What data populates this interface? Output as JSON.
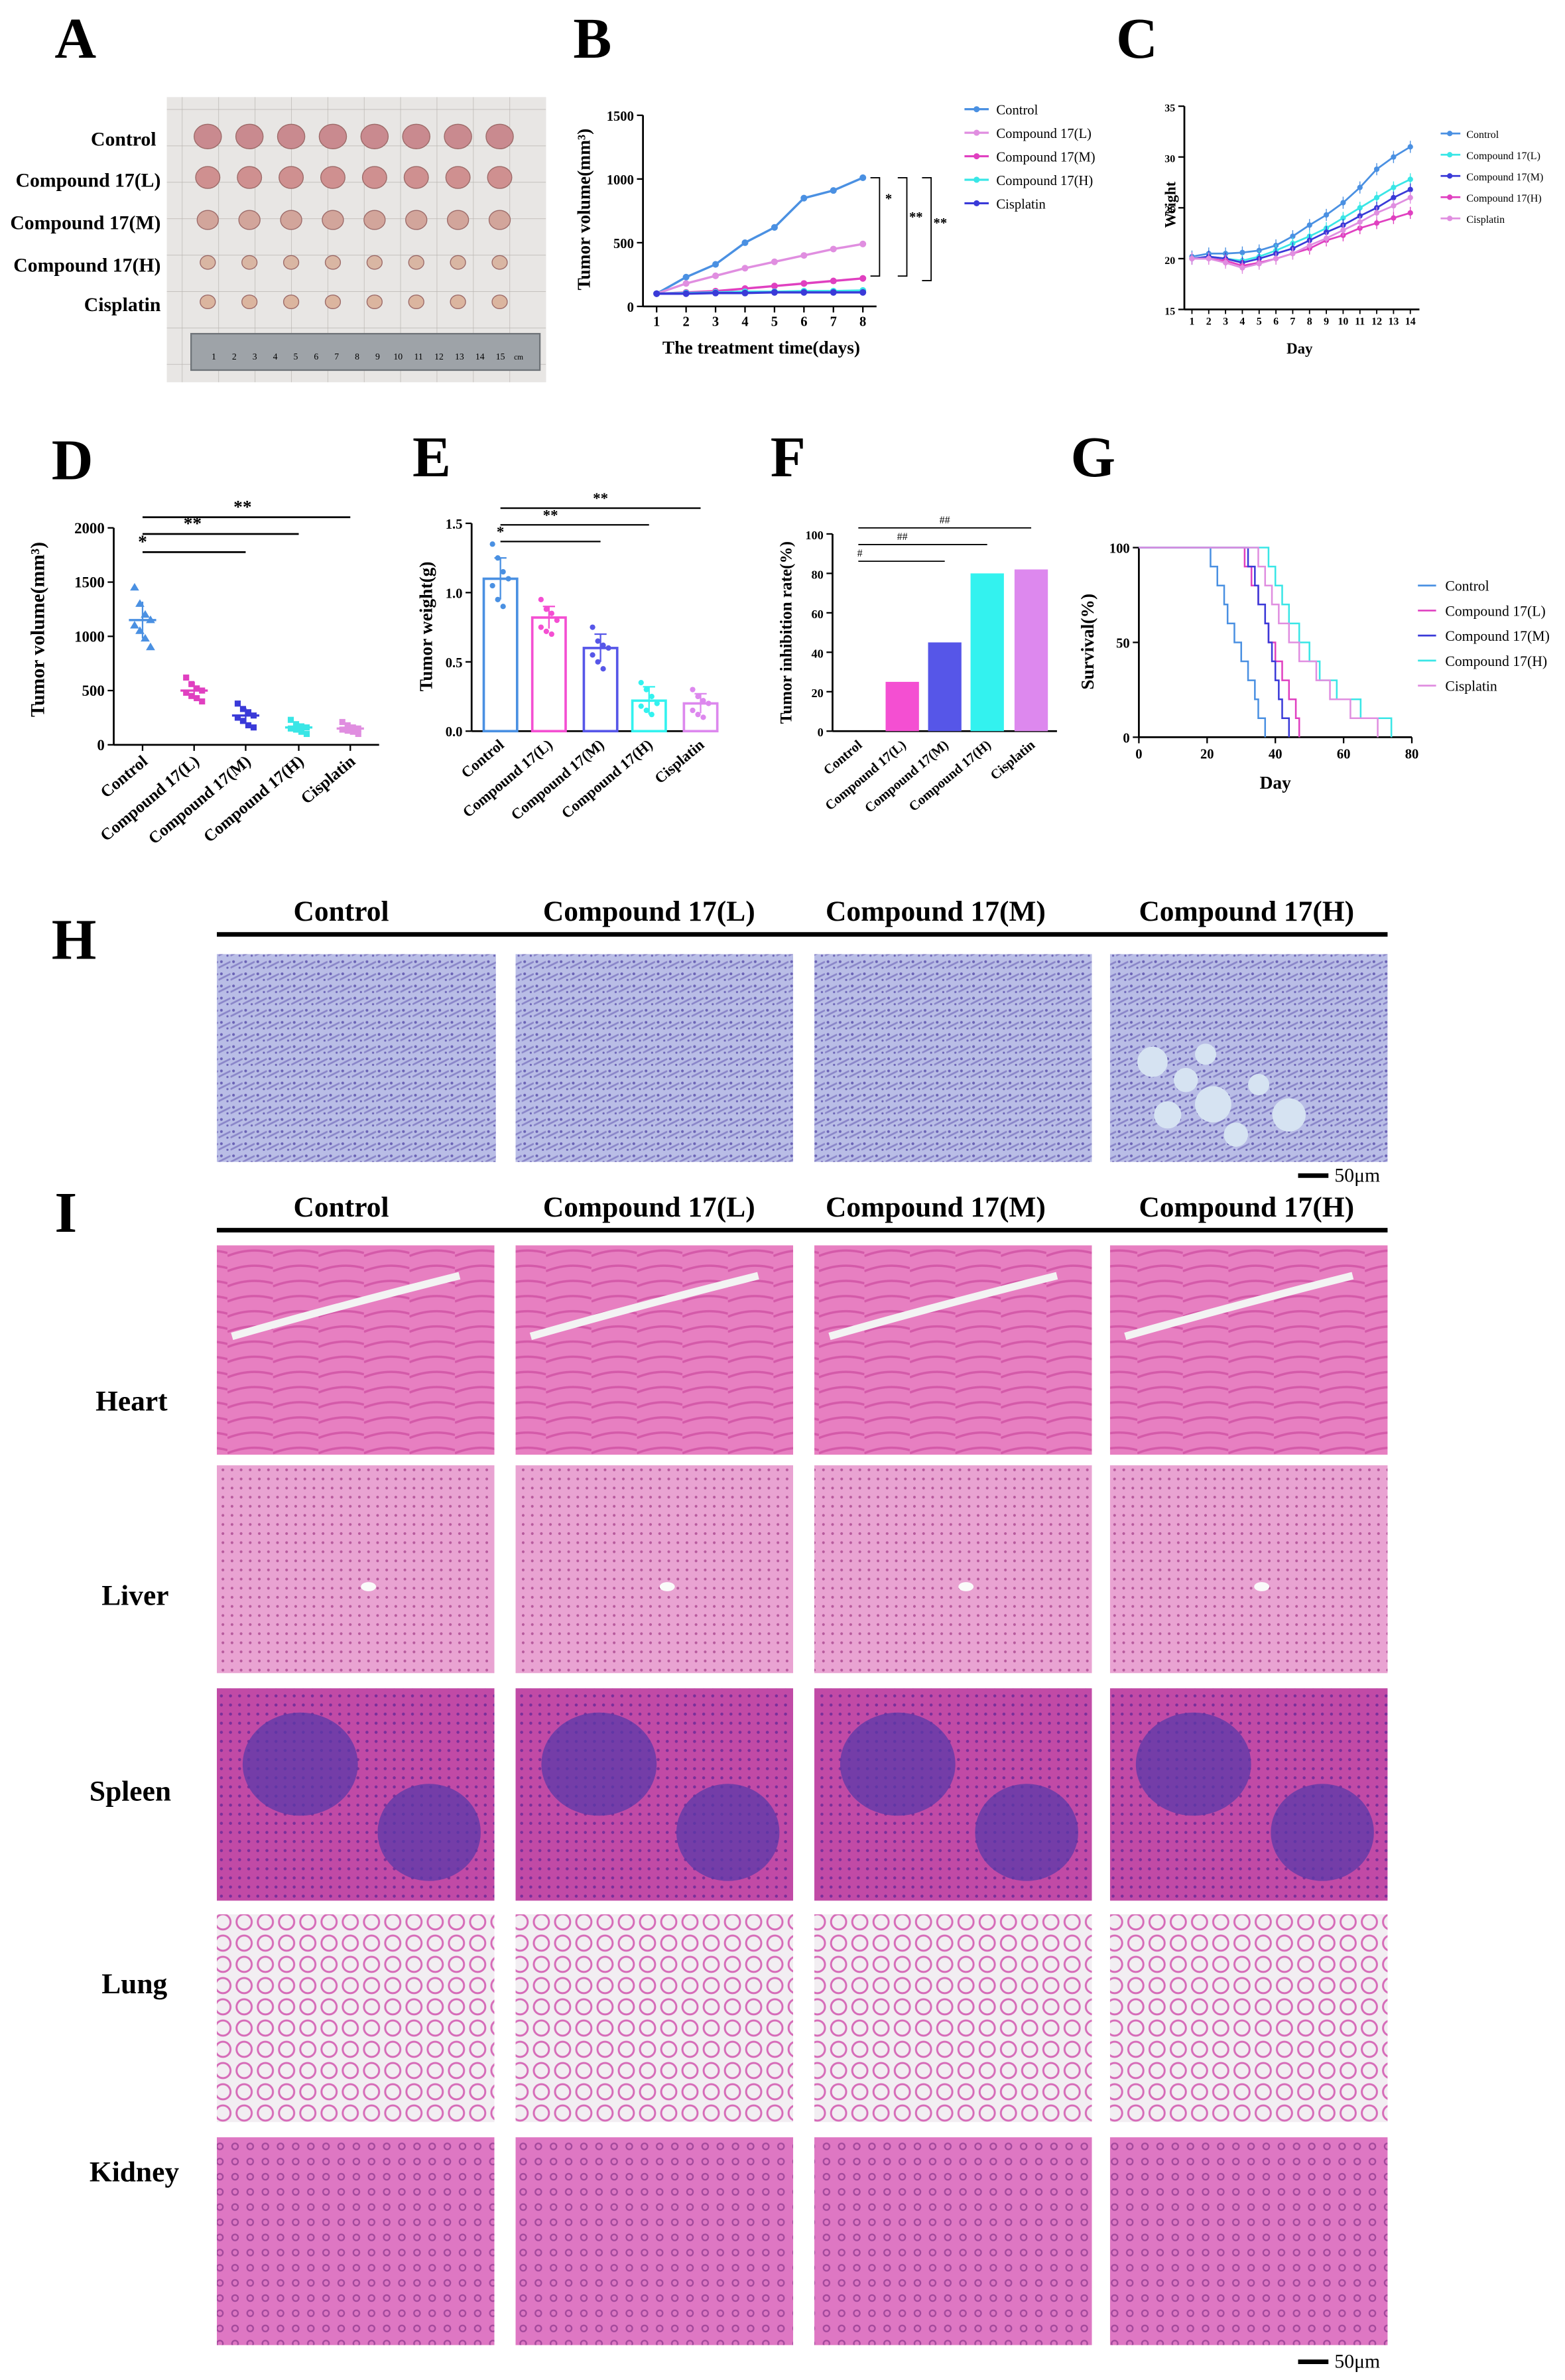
{
  "panel_letters": [
    "A",
    "B",
    "C",
    "D",
    "E",
    "F",
    "G",
    "H",
    "I"
  ],
  "groups": [
    "Control",
    "Compound 17(L)",
    "Compound 17(M)",
    "Compound 17(H)",
    "Cisplatin"
  ],
  "colors": {
    "Control": "#4a90e2",
    "Compound 17(L)": "#e08ee0",
    "Compound 17(M)": "#e040c0",
    "Compound 17(H)": "#39e6e6",
    "Cisplatin": "#3a3ad8",
    "bar_L": "#f44fd2",
    "bar_M": "#5656e8",
    "bar_H": "#33f2ef",
    "bar_Cis": "#dd88ee"
  },
  "panelA": {
    "row_labels": [
      "Control",
      "Compound 17(L)",
      "Compound 17(M)",
      "Compound 17(H)",
      "Cisplatin"
    ],
    "ruler_numbers": [
      "1",
      "2",
      "3",
      "4",
      "5",
      "6",
      "7",
      "8",
      "9",
      "10",
      "11",
      "12",
      "13",
      "14",
      "15"
    ],
    "ruler_unit": "cm"
  },
  "chart_data": [
    {
      "id": "B",
      "type": "line",
      "xlabel": "The treatment time(days)",
      "ylabel": "Tumor volume(mm³)",
      "x": [
        1,
        2,
        3,
        4,
        5,
        6,
        7,
        8
      ],
      "xlim": [
        1,
        8
      ],
      "ylim": [
        0,
        1500
      ],
      "yticks": [
        0,
        500,
        1000,
        1500
      ],
      "legend": "right",
      "series": [
        {
          "name": "Control",
          "values": [
            100,
            230,
            330,
            500,
            620,
            850,
            910,
            1010
          ]
        },
        {
          "name": "Compound 17(L)",
          "values": [
            100,
            180,
            240,
            300,
            350,
            400,
            450,
            490
          ]
        },
        {
          "name": "Compound 17(M)",
          "values": [
            100,
            110,
            120,
            140,
            160,
            180,
            200,
            220
          ]
        },
        {
          "name": "Compound 17(H)",
          "values": [
            100,
            105,
            110,
            115,
            115,
            120,
            120,
            125
          ]
        },
        {
          "name": "Cisplatin",
          "values": [
            100,
            100,
            105,
            105,
            110,
            110,
            110,
            110
          ]
        }
      ],
      "annotations": [
        "*",
        "**",
        "**"
      ]
    },
    {
      "id": "C",
      "type": "line",
      "xlabel": "Day",
      "ylabel": "Weight",
      "x": [
        1,
        2,
        3,
        4,
        5,
        6,
        7,
        8,
        9,
        10,
        11,
        12,
        13,
        14
      ],
      "xlim": [
        1,
        14
      ],
      "ylim": [
        15,
        35
      ],
      "yticks": [
        15,
        20,
        25,
        30,
        35
      ],
      "legend": "right",
      "series": [
        {
          "name": "Control",
          "values": [
            20.2,
            20.5,
            20.5,
            20.6,
            20.8,
            21.3,
            22.2,
            23.3,
            24.3,
            25.5,
            27.0,
            28.8,
            30.0,
            31.0
          ]
        },
        {
          "name": "Compound 17(L)",
          "values": [
            20.0,
            20.2,
            20.0,
            19.8,
            20.2,
            20.8,
            21.5,
            22.2,
            23.0,
            24.0,
            25.0,
            26.0,
            27.0,
            27.8
          ]
        },
        {
          "name": "Compound 17(M)",
          "values": [
            20.0,
            20.2,
            20.0,
            19.6,
            20.0,
            20.5,
            21.0,
            21.8,
            22.6,
            23.3,
            24.2,
            25.0,
            26.0,
            26.8
          ]
        },
        {
          "name": "Compound 17(H)",
          "values": [
            20.0,
            20.0,
            19.8,
            19.3,
            19.6,
            20.0,
            20.5,
            21.0,
            21.8,
            22.3,
            23.0,
            23.5,
            24.0,
            24.5
          ]
        },
        {
          "name": "Cisplatin",
          "values": [
            20.0,
            20.0,
            19.6,
            19.1,
            19.5,
            20.0,
            20.5,
            21.3,
            22.0,
            22.8,
            23.6,
            24.5,
            25.2,
            26.0
          ]
        }
      ]
    },
    {
      "id": "D",
      "type": "scatter",
      "ylabel": "Tumor volume(mm³)",
      "ylim": [
        0,
        2000
      ],
      "yticks": [
        0,
        500,
        1000,
        1500,
        2000
      ],
      "categories": [
        "Control",
        "Compound 17(L)",
        "Compound 17(M)",
        "Compound 17(H)",
        "Cisplatin"
      ],
      "means": [
        1150,
        500,
        270,
        160,
        150
      ],
      "errors": [
        170,
        80,
        70,
        40,
        35
      ],
      "points": [
        [
          1450,
          1300,
          1200,
          1150,
          1100,
          1050,
          980,
          900
        ],
        [
          620,
          560,
          520,
          500,
          480,
          450,
          430,
          400
        ],
        [
          380,
          330,
          300,
          270,
          250,
          220,
          180,
          160
        ],
        [
          230,
          190,
          170,
          160,
          150,
          140,
          120,
          100
        ],
        [
          210,
          180,
          160,
          150,
          140,
          130,
          120,
          100
        ]
      ],
      "annotations": [
        "**",
        "**",
        "*"
      ]
    },
    {
      "id": "E",
      "type": "bar",
      "ylabel": "Tumor weight(g)",
      "ylim": [
        0,
        1.5
      ],
      "yticks": [
        0.0,
        0.5,
        1.0,
        1.5
      ],
      "categories": [
        "Control",
        "Compound 17(L)",
        "Compound 17(M)",
        "Compound 17(H)",
        "Cisplatin"
      ],
      "values": [
        1.1,
        0.82,
        0.6,
        0.22,
        0.2
      ],
      "errors": [
        0.15,
        0.08,
        0.1,
        0.1,
        0.07
      ],
      "points": [
        [
          1.35,
          1.25,
          1.15,
          1.1,
          1.05,
          0.95,
          0.9
        ],
        [
          0.95,
          0.88,
          0.85,
          0.8,
          0.75,
          0.72,
          0.7
        ],
        [
          0.75,
          0.65,
          0.62,
          0.6,
          0.55,
          0.5,
          0.45
        ],
        [
          0.35,
          0.3,
          0.25,
          0.2,
          0.18,
          0.15,
          0.12
        ],
        [
          0.3,
          0.25,
          0.22,
          0.2,
          0.15,
          0.12,
          0.1
        ]
      ],
      "annotations": [
        "**",
        "**",
        "*"
      ]
    },
    {
      "id": "F",
      "type": "bar",
      "ylabel": "Tumor inhibition rate(%)",
      "ylim": [
        0,
        100
      ],
      "yticks": [
        0,
        20,
        40,
        60,
        80,
        100
      ],
      "categories": [
        "Control",
        "Compound 17(L)",
        "Compound 17(M)",
        "Compound 17(H)",
        "Cisplatin"
      ],
      "values": [
        0,
        25,
        45,
        80,
        82
      ],
      "annotations": [
        "##",
        "##",
        "#"
      ]
    },
    {
      "id": "G",
      "type": "line",
      "xlabel": "Day",
      "ylabel": "Survival(%)",
      "xlim": [
        0,
        80
      ],
      "ylim": [
        0,
        100
      ],
      "xticks": [
        0,
        20,
        40,
        60,
        80
      ],
      "yticks": [
        0,
        50,
        100
      ],
      "legend": "right",
      "series": [
        {
          "name": "Control",
          "points": [
            [
              0,
              100
            ],
            [
              21,
              100
            ],
            [
              21,
              90
            ],
            [
              23,
              80
            ],
            [
              25,
              70
            ],
            [
              26,
              60
            ],
            [
              28,
              50
            ],
            [
              30,
              40
            ],
            [
              32,
              30
            ],
            [
              34,
              20
            ],
            [
              35,
              10
            ],
            [
              37,
              0
            ]
          ]
        },
        {
          "name": "Compound 17(L)",
          "points": [
            [
              0,
              100
            ],
            [
              31,
              100
            ],
            [
              31,
              90
            ],
            [
              33,
              80
            ],
            [
              35,
              70
            ],
            [
              37,
              60
            ],
            [
              38,
              50
            ],
            [
              40,
              40
            ],
            [
              42,
              30
            ],
            [
              44,
              20
            ],
            [
              46,
              10
            ],
            [
              47,
              0
            ]
          ]
        },
        {
          "name": "Compound 17(M)",
          "points": [
            [
              0,
              100
            ],
            [
              32,
              100
            ],
            [
              32,
              90
            ],
            [
              34,
              80
            ],
            [
              35,
              70
            ],
            [
              37,
              60
            ],
            [
              38,
              50
            ],
            [
              39,
              40
            ],
            [
              40,
              30
            ],
            [
              41,
              20
            ],
            [
              42,
              10
            ],
            [
              44,
              0
            ]
          ]
        },
        {
          "name": "Compound 17(H)",
          "points": [
            [
              0,
              100
            ],
            [
              36,
              100
            ],
            [
              38,
              90
            ],
            [
              40,
              80
            ],
            [
              42,
              70
            ],
            [
              44,
              60
            ],
            [
              47,
              50
            ],
            [
              50,
              40
            ],
            [
              53,
              30
            ],
            [
              58,
              20
            ],
            [
              65,
              10
            ],
            [
              74,
              0
            ]
          ]
        },
        {
          "name": "Cisplatin",
          "points": [
            [
              0,
              100
            ],
            [
              33,
              100
            ],
            [
              35,
              90
            ],
            [
              37,
              80
            ],
            [
              39,
              70
            ],
            [
              41,
              60
            ],
            [
              44,
              50
            ],
            [
              47,
              40
            ],
            [
              52,
              30
            ],
            [
              56,
              20
            ],
            [
              62,
              10
            ],
            [
              70,
              0
            ]
          ]
        }
      ]
    }
  ],
  "panelH": {
    "headers": [
      "Control",
      "Compound 17(L)",
      "Compound 17(M)",
      "Compound 17(H)"
    ],
    "scale_bar": "50μm"
  },
  "panelI": {
    "headers": [
      "Control",
      "Compound 17(L)",
      "Compound 17(M)",
      "Compound 17(H)"
    ],
    "rows": [
      "Heart",
      "Liver",
      "Spleen",
      "Lung",
      "Kidney"
    ],
    "scale_bar": "50μm"
  }
}
